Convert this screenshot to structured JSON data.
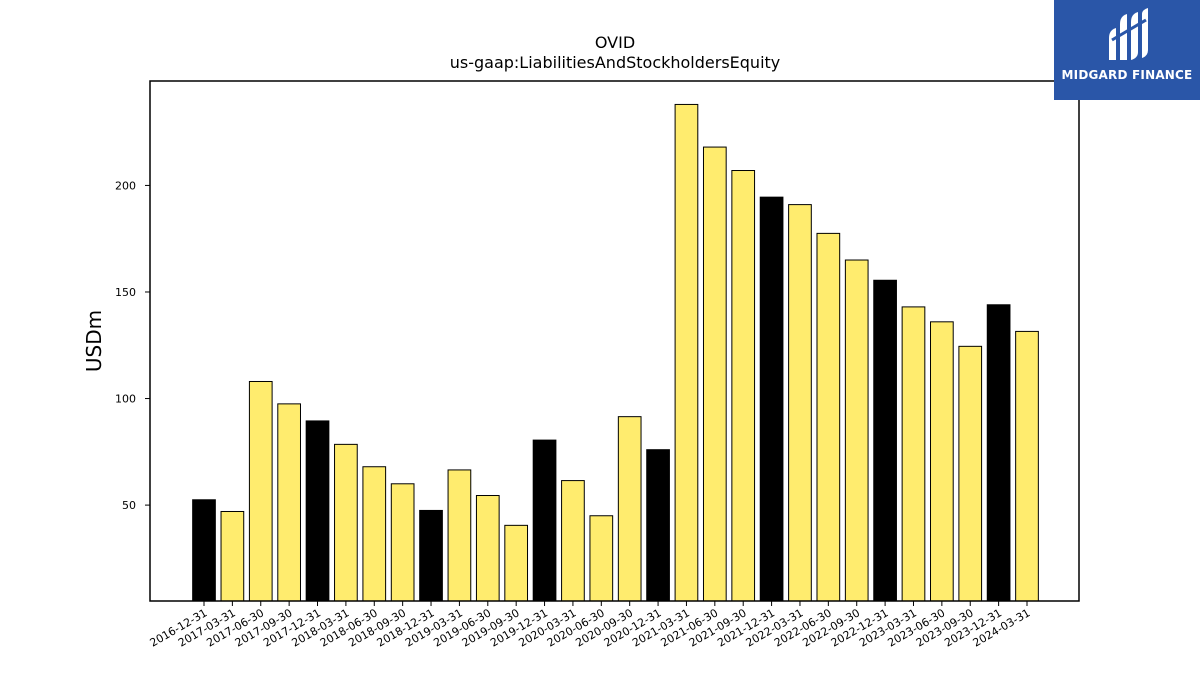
{
  "chart_data": {
    "type": "bar",
    "title": "OVID",
    "subtitle": "us-gaap:LiabilitiesAndStockholdersEquity",
    "xlabel": "",
    "ylabel": "USDm",
    "ylim": [
      5,
      249
    ],
    "yticks": [
      50,
      100,
      150,
      200
    ],
    "grid": false,
    "categories": [
      "2016-12-31",
      "2017-03-31",
      "2017-06-30",
      "2017-09-30",
      "2017-12-31",
      "2018-03-31",
      "2018-06-30",
      "2018-09-30",
      "2018-12-31",
      "2019-03-31",
      "2019-06-30",
      "2019-09-30",
      "2019-12-31",
      "2020-03-31",
      "2020-06-30",
      "2020-09-30",
      "2020-12-31",
      "2021-03-31",
      "2021-06-30",
      "2021-09-30",
      "2021-12-31",
      "2022-03-31",
      "2022-06-30",
      "2022-09-30",
      "2022-12-31",
      "2023-03-31",
      "2023-06-30",
      "2023-09-30",
      "2023-12-31",
      "2024-03-31"
    ],
    "values": [
      52.5,
      47,
      108,
      97.5,
      89.5,
      78.5,
      68,
      60,
      47.5,
      66.5,
      54.5,
      40.5,
      80.5,
      61.5,
      45,
      91.5,
      76,
      238,
      218,
      207,
      194.5,
      191,
      177.5,
      165,
      155.5,
      143,
      136,
      124.5,
      144,
      131.5
    ],
    "bar_colors": [
      "#000000",
      "#ffec6e",
      "#ffec6e",
      "#ffec6e",
      "#000000",
      "#ffec6e",
      "#ffec6e",
      "#ffec6e",
      "#000000",
      "#ffec6e",
      "#ffec6e",
      "#ffec6e",
      "#000000",
      "#ffec6e",
      "#ffec6e",
      "#ffec6e",
      "#000000",
      "#ffec6e",
      "#ffec6e",
      "#ffec6e",
      "#000000",
      "#ffec6e",
      "#ffec6e",
      "#ffec6e",
      "#000000",
      "#ffec6e",
      "#ffec6e",
      "#ffec6e",
      "#000000",
      "#ffec6e"
    ]
  },
  "logo": {
    "text": "MIDGARD FINANCE",
    "background": "#2a56a8",
    "icon": "midgard-logo-icon"
  }
}
